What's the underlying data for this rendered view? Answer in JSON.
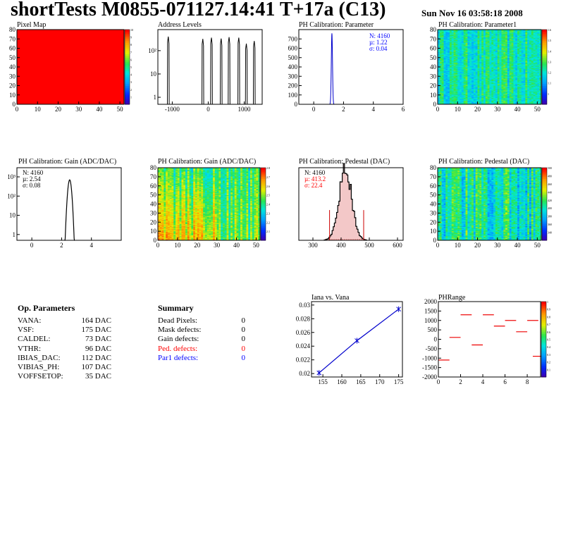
{
  "header": {
    "title": "shortTests M0855-071127.14:41 T+17a (C13)",
    "date": "Sun Nov 16 03:58:18 2008"
  },
  "op_parameters": {
    "title": "Op. Parameters",
    "rows": [
      {
        "label": "VANA:",
        "value": "164 DAC"
      },
      {
        "label": "VSF:",
        "value": "175 DAC"
      },
      {
        "label": "CALDEL:",
        "value": "73 DAC"
      },
      {
        "label": "VTHR:",
        "value": "96 DAC"
      },
      {
        "label": "IBIAS_DAC:",
        "value": "112 DAC"
      },
      {
        "label": "VIBIAS_PH:",
        "value": "107 DAC"
      },
      {
        "label": "VOFFSETOP:",
        "value": "35 DAC"
      }
    ]
  },
  "summary": {
    "title": "Summary",
    "rows": [
      {
        "label": "Dead Pixels:",
        "value": "0",
        "color": "#000000"
      },
      {
        "label": "Mask defects:",
        "value": "0",
        "color": "#000000"
      },
      {
        "label": "Gain defects:",
        "value": "0",
        "color": "#000000"
      },
      {
        "label": "Ped. defects:",
        "value": "0",
        "color": "#ff0000"
      },
      {
        "label": "Par1 defects:",
        "value": "0",
        "color": "#0000ff"
      }
    ]
  },
  "chart_data": [
    {
      "id": "pixelmap",
      "type": "heatmap",
      "title": "Pixel Map",
      "xlim": [
        0,
        52
      ],
      "ylim": [
        0,
        80
      ],
      "xticks": [
        "0",
        "10",
        "20",
        "30",
        "40",
        "50"
      ],
      "yticks": [
        "0",
        "10",
        "20",
        "30",
        "40",
        "50",
        "60",
        "70",
        "80"
      ],
      "fill_color": "#ff0000",
      "value": 10,
      "colorbar": {
        "min": 0,
        "max": 10,
        "ticks": [
          "1",
          "2",
          "3",
          "4",
          "5",
          "6",
          "7",
          "8",
          "9",
          "10"
        ]
      }
    },
    {
      "id": "address",
      "type": "bar",
      "title": "Address Levels",
      "log_y": true,
      "xlim": [
        -1400,
        1500
      ],
      "xticks": [
        "-1000",
        "0",
        "1000"
      ],
      "yticks": [
        "1",
        "10",
        "10²"
      ],
      "peaks": [
        {
          "x": -1110,
          "height": 400
        },
        {
          "x": -150,
          "height": 320
        },
        {
          "x": 90,
          "height": 360
        },
        {
          "x": 360,
          "height": 330
        },
        {
          "x": 580,
          "height": 380
        },
        {
          "x": 850,
          "height": 360
        },
        {
          "x": 1060,
          "height": 200
        },
        {
          "x": 1280,
          "height": 260
        }
      ]
    },
    {
      "id": "phparam",
      "type": "bar",
      "title": "PH Calibration: Parameter",
      "xlim": [
        -1,
        6
      ],
      "ylim": [
        0,
        800
      ],
      "xticks": [
        "0",
        "2",
        "4",
        "6"
      ],
      "yticks": [
        "0",
        "100",
        "200",
        "300",
        "400",
        "500",
        "600",
        "700"
      ],
      "stats": [
        "N: 4160",
        "µ: 1.22",
        "σ: 0.04"
      ],
      "stats_color": "#0000ff",
      "mean": 1.22,
      "sigma": 0.04,
      "peak": 760
    },
    {
      "id": "param1map",
      "type": "heatmap",
      "title": "PH Calibration: Parameter1",
      "xlim": [
        0,
        52
      ],
      "ylim": [
        0,
        80
      ],
      "xticks": [
        "0",
        "10",
        "20",
        "30",
        "40",
        "50"
      ],
      "yticks": [
        "0",
        "10",
        "20",
        "30",
        "40",
        "50",
        "60",
        "70",
        "80"
      ],
      "colorbar": {
        "min": 0.9,
        "max": 1.6,
        "ticks": [
          "1",
          "1.1",
          "1.2",
          "1.3",
          "1.4",
          "1.5",
          "1.6"
        ]
      }
    },
    {
      "id": "gainhist",
      "type": "bar",
      "title": "PH Calibration: Gain (ADC/DAC)",
      "log_y": true,
      "xlim": [
        -1,
        6
      ],
      "xticks": [
        "0",
        "2",
        "4"
      ],
      "yticks": [
        "1",
        "10",
        "10²",
        "10³"
      ],
      "stats": [
        "N: 4160",
        "µ: 2.54",
        "σ: 0.08"
      ],
      "stats_color": "#000000",
      "mean": 2.54,
      "sigma": 0.08,
      "peak": 700
    },
    {
      "id": "gainmap",
      "type": "heatmap",
      "title": "PH Calibration: Gain (ADC/DAC)",
      "xlim": [
        0,
        52
      ],
      "ylim": [
        0,
        80
      ],
      "xticks": [
        "0",
        "10",
        "20",
        "30",
        "40",
        "50"
      ],
      "yticks": [
        "0",
        "10",
        "20",
        "30",
        "40",
        "50",
        "60",
        "70",
        "80"
      ],
      "colorbar": {
        "min": 2.0,
        "max": 2.8,
        "ticks": [
          "2.1",
          "2.2",
          "2.3",
          "2.4",
          "2.5",
          "2.6",
          "2.7",
          "2.8"
        ]
      }
    },
    {
      "id": "pedhist",
      "type": "bar",
      "title": "PH Calibration: Pedestal (DAC)",
      "xlim": [
        250,
        620
      ],
      "ylim": [
        0,
        120
      ],
      "xticks": [
        "300",
        "400",
        "500",
        "600"
      ],
      "yticks": [
        "0",
        "20",
        "40",
        "60",
        "80",
        "100",
        "120"
      ],
      "stats": [
        "N: 4160",
        "µ: 413.2",
        "σ: 22.4"
      ],
      "stats_colors": [
        "#000000",
        "#ff0000",
        "#ff0000"
      ],
      "mean": 413.2,
      "sigma": 22.4,
      "peak": 118,
      "cut_lines": [
        359,
        480
      ]
    },
    {
      "id": "pedmap",
      "type": "heatmap",
      "title": "PH Calibration: Pedestal (DAC)",
      "xlim": [
        0,
        52
      ],
      "ylim": [
        0,
        80
      ],
      "xticks": [
        "0",
        "10",
        "20",
        "30",
        "40",
        "50"
      ],
      "yticks": [
        "0",
        "10",
        "20",
        "30",
        "40",
        "50",
        "60",
        "70",
        "80"
      ],
      "colorbar": {
        "min": 330,
        "max": 500,
        "ticks": [
          "340",
          "360",
          "380",
          "400",
          "420",
          "440",
          "460",
          "480",
          "500"
        ]
      }
    },
    {
      "id": "iana",
      "type": "line",
      "title": "Iana vs. Vana",
      "xlim": [
        152,
        176
      ],
      "ylim": [
        0.0195,
        0.0305
      ],
      "xticks": [
        "155",
        "160",
        "165",
        "170",
        "175"
      ],
      "yticks": [
        "0.02",
        "0.022",
        "0.024",
        "0.026",
        "0.028",
        "0.03"
      ],
      "x": [
        154,
        164,
        175
      ],
      "y": [
        0.0201,
        0.0248,
        0.0294
      ],
      "line_color": "#0000cc"
    },
    {
      "id": "phrange",
      "type": "heatmap",
      "title": "PHRange",
      "xlim": [
        0,
        9.2
      ],
      "ylim": [
        -2000,
        2000
      ],
      "xticks": [
        "0",
        "2",
        "4",
        "6",
        "8"
      ],
      "yticks": [
        "-2000",
        "-1500",
        "-1000",
        "-500",
        "0",
        "500",
        "1000",
        "1500",
        "2000"
      ],
      "segments": [
        {
          "x": 0,
          "y": -1100
        },
        {
          "x": 1,
          "y": 100
        },
        {
          "x": 2,
          "y": 1300
        },
        {
          "x": 3,
          "y": -300
        },
        {
          "x": 4,
          "y": 1300
        },
        {
          "x": 5,
          "y": 700
        },
        {
          "x": 6,
          "y": 1000
        },
        {
          "x": 7,
          "y": 400
        },
        {
          "x": 8,
          "y": 1000
        },
        {
          "x": 8.5,
          "y": -900
        }
      ],
      "colorbar": {
        "min": 0,
        "max": 1,
        "ticks": [
          "0.1",
          "0.2",
          "0.3",
          "0.4",
          "0.5",
          "0.6",
          "0.7",
          "0.8",
          "0.9",
          "1"
        ]
      }
    }
  ]
}
